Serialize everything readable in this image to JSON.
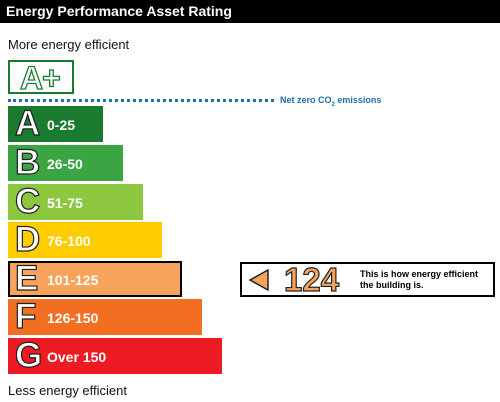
{
  "header": {
    "title": "Energy Performance Asset Rating"
  },
  "labels": {
    "top": "More energy efficient",
    "bottom": "Less energy efficient"
  },
  "aplus": {
    "text": "A+",
    "color": "#1a7a2e"
  },
  "net_zero": {
    "prefix": "Net zero CO",
    "subscript": "2",
    "suffix": " emissions"
  },
  "bands": [
    {
      "letter": "A",
      "range": "0-25",
      "color": "#1a7a2e"
    },
    {
      "letter": "B",
      "range": "26-50",
      "color": "#3aa542"
    },
    {
      "letter": "C",
      "range": "51-75",
      "color": "#8dc63f"
    },
    {
      "letter": "D",
      "range": "76-100",
      "color": "#ffcc00"
    },
    {
      "letter": "E",
      "range": "101-125",
      "color": "#f7a35c"
    },
    {
      "letter": "F",
      "range": "126-150",
      "color": "#f26f21"
    },
    {
      "letter": "G",
      "range": "Over 150",
      "color": "#ed1c24"
    }
  ],
  "rating": {
    "value": "124",
    "band": "E",
    "caption_line1": "This is how energy efficient",
    "caption_line2": "the building is."
  }
}
